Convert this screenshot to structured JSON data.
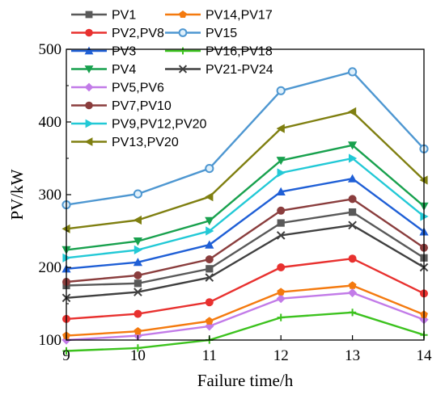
{
  "chart_data": {
    "type": "line",
    "title": "",
    "xlabel": "Failure time/h",
    "ylabel": "PV/kW",
    "x": [
      9,
      10,
      11,
      12,
      13,
      14
    ],
    "xlim": [
      9,
      14
    ],
    "ylim": [
      100,
      500
    ],
    "xticks": [
      "9",
      "10",
      "11",
      "12",
      "13",
      "14"
    ],
    "yticks": [
      "100",
      "200",
      "300",
      "400",
      "500"
    ],
    "grid": false,
    "legend_position": "top-left",
    "series": [
      {
        "name": "PV1",
        "color": "#595959",
        "marker": "square",
        "values": [
          175,
          178,
          198,
          261,
          276,
          213
        ]
      },
      {
        "name": "PV2,PV8",
        "color": "#e8312f",
        "marker": "circle",
        "values": [
          129,
          136,
          152,
          200,
          212,
          164
        ]
      },
      {
        "name": "PV3",
        "color": "#1f5fd6",
        "marker": "triangle-up",
        "values": [
          198,
          207,
          231,
          304,
          322,
          249
        ]
      },
      {
        "name": "PV4",
        "color": "#18a14e",
        "marker": "triangle-down",
        "values": [
          224,
          236,
          264,
          347,
          368,
          284
        ]
      },
      {
        "name": "PV5,PV6",
        "color": "#c27be8",
        "marker": "diamond",
        "values": [
          100,
          106,
          119,
          157,
          165,
          128
        ]
      },
      {
        "name": "PV7,PV10",
        "color": "#8a3d3d",
        "marker": "circle",
        "values": [
          180,
          189,
          211,
          278,
          294,
          227
        ]
      },
      {
        "name": "PV9,PV12,PV20",
        "color": "#22c9d6",
        "marker": "triangle-right",
        "values": [
          213,
          224,
          250,
          330,
          350,
          270
        ]
      },
      {
        "name": "PV13,PV20",
        "color": "#7f7f10",
        "marker": "triangle-left",
        "values": [
          253,
          265,
          297,
          391,
          414,
          320
        ]
      },
      {
        "name": "PV14,PV17",
        "color": "#f47a0f",
        "marker": "pentagon",
        "values": [
          106,
          112,
          126,
          166,
          175,
          135
        ]
      },
      {
        "name": "PV15",
        "color": "#4e97d1",
        "marker": "circle-open",
        "values": [
          286,
          301,
          336,
          443,
          469,
          363
        ]
      },
      {
        "name": "PV16,PV18",
        "color": "#3cc21e",
        "marker": "plus",
        "values": [
          85,
          89,
          100,
          131,
          138,
          107
        ]
      },
      {
        "name": "PV21-PV24",
        "color": "#404040",
        "marker": "x",
        "values": [
          158,
          166,
          186,
          244,
          258,
          200
        ]
      }
    ]
  }
}
